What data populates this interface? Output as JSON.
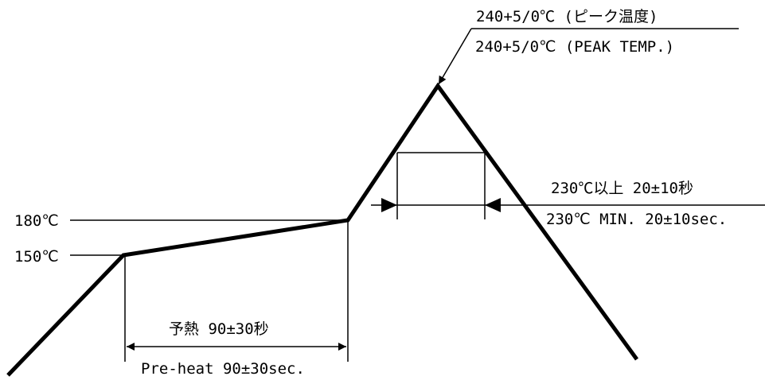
{
  "colors": {
    "stroke": "#000000",
    "background": "#ffffff"
  },
  "labels": {
    "temp_180": "180℃",
    "temp_150": "150℃",
    "peak_jp": "240+5/0℃ (ピーク温度)",
    "peak_en": "240+5/0℃ (PEAK TEMP.)",
    "above230_jp": "230℃以上 20±10秒",
    "above230_en": "230℃ MIN. 20±10sec.",
    "preheat_jp": "予熱 90±30秒",
    "preheat_en": "Pre-heat 90±30sec."
  }
}
